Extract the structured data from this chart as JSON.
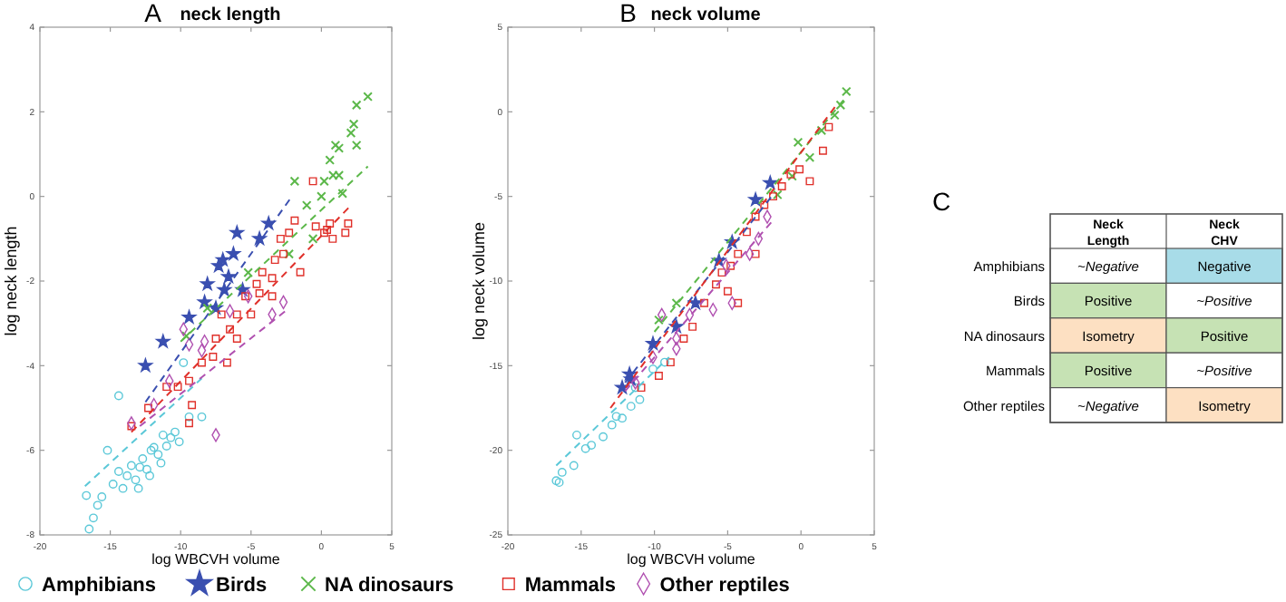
{
  "chart_data": [
    {
      "type": "scatter",
      "title": "neck length",
      "annotations": [
        "A"
      ],
      "xlabel": "log WBCVH volume",
      "ylabel": "log neck length",
      "xlim": [
        -20,
        5
      ],
      "ylim": [
        -8,
        4
      ],
      "xticks": [
        -20,
        -15,
        -10,
        -5,
        0,
        5
      ],
      "yticks": [
        -8,
        -6,
        -4,
        -2,
        0,
        2,
        4
      ],
      "grid": false,
      "legend": "bottom",
      "series": [
        {
          "name": "Amphibians",
          "color": "#5bc8d8",
          "marker": "circle",
          "x": [
            -16.7,
            -16.5,
            -16.2,
            -15.9,
            -15.2,
            -14.8,
            -14.4,
            -14.1,
            -13.8,
            -13.5,
            -13.2,
            -12.9,
            -12.7,
            -12.4,
            -12.1,
            -11.9,
            -11.6,
            -11.25,
            -11.0,
            -10.7,
            -10.4,
            -10.1,
            -9.4,
            -8.5,
            -14.4,
            -9.8,
            -15.6,
            -13.0,
            -12.2,
            -11.4
          ],
          "values": [
            -7.07,
            -7.86,
            -7.6,
            -7.3,
            -6.0,
            -6.8,
            -6.5,
            -6.9,
            -6.6,
            -6.36,
            -6.7,
            -6.4,
            -6.2,
            -6.45,
            -6.0,
            -5.93,
            -6.1,
            -5.64,
            -5.9,
            -5.7,
            -5.57,
            -5.8,
            -5.21,
            -5.21,
            -4.71,
            -3.93,
            -7.1,
            -6.9,
            -6.6,
            -6.3
          ]
        },
        {
          "name": "Birds",
          "color": "#3a4fb0",
          "marker": "star",
          "x": [
            -12.5,
            -11.25,
            -9.4,
            -8.1,
            -7.3,
            -6.25,
            -6.0,
            -4.4,
            -3.75,
            -6.9,
            -5.6,
            -8.3,
            -7.5,
            -6.6,
            -7.0
          ],
          "values": [
            -4.0,
            -3.43,
            -2.86,
            -2.07,
            -1.64,
            -1.36,
            -0.86,
            -1.0,
            -0.64,
            -2.21,
            -2.21,
            -2.5,
            -2.64,
            -1.9,
            -1.5
          ]
        },
        {
          "name": "NA dinosaurs",
          "color": "#5cb84a",
          "marker": "cross",
          "x": [
            2.5,
            3.3,
            2.3,
            2.1,
            1.0,
            2.5,
            0.6,
            1.25,
            0.2,
            1.5,
            1.25,
            0.83,
            -1.04,
            -1.9,
            0.0,
            -2.3,
            -5.2,
            -8.1,
            -9.6,
            -0.6
          ],
          "values": [
            2.16,
            2.36,
            1.71,
            1.5,
            1.21,
            1.21,
            0.86,
            0.5,
            0.36,
            0.07,
            1.14,
            0.5,
            -0.21,
            0.36,
            0.0,
            -1.36,
            -1.8,
            -2.64,
            -3.3,
            -1.0
          ]
        },
        {
          "name": "Mammals",
          "color": "#e0302a",
          "marker": "square",
          "x": [
            -13.5,
            -12.3,
            -11.0,
            -10.2,
            -9.4,
            -8.5,
            -7.7,
            -7.5,
            -6.7,
            -6.5,
            -7.1,
            -6.0,
            -5.4,
            -5.0,
            -4.6,
            -4.2,
            -3.5,
            -3.3,
            -2.7,
            -2.9,
            -2.3,
            -1.9,
            -1.5,
            -0.6,
            -0.4,
            0.2,
            0.6,
            -9.4,
            -9.2,
            -4.4,
            -3.5,
            -6.0,
            0.4,
            1.7,
            1.9,
            0.8
          ],
          "values": [
            -5.43,
            -5.0,
            -4.5,
            -4.5,
            -4.36,
            -3.93,
            -3.79,
            -3.36,
            -3.93,
            -3.14,
            -2.79,
            -2.79,
            -2.36,
            -2.79,
            -2.07,
            -1.79,
            -1.93,
            -1.5,
            -1.36,
            -1.0,
            -0.86,
            -0.57,
            -1.79,
            0.36,
            -0.71,
            -0.86,
            -0.64,
            -5.36,
            -4.93,
            -2.29,
            -2.36,
            -3.36,
            -0.79,
            -0.86,
            -0.64,
            -1.0
          ]
        },
        {
          "name": "Other reptiles",
          "color": "#b050b0",
          "marker": "diamond",
          "x": [
            -13.5,
            -11.9,
            -10.8,
            -9.4,
            -8.5,
            -7.5,
            -6.5,
            -5.2,
            -3.5,
            -2.7,
            -9.8,
            -8.3
          ],
          "values": [
            -5.36,
            -4.93,
            -4.36,
            -3.5,
            -3.64,
            -5.64,
            -2.71,
            -2.36,
            -2.79,
            -2.5,
            -3.14,
            -3.43
          ]
        },
        {
          "type": "line",
          "color": "#5bc8d8",
          "line_style": "dashed",
          "x": [
            -16.8,
            -8.5
          ],
          "values": [
            -6.85,
            -4.3
          ]
        },
        {
          "type": "line",
          "color": "#3a4fb0",
          "line_style": "dashed",
          "x": [
            -12.5,
            -2.1
          ],
          "values": [
            -4.86,
            0.0
          ]
        },
        {
          "type": "line",
          "color": "#5cb84a",
          "line_style": "dashed",
          "x": [
            -10.0,
            3.3
          ],
          "values": [
            -3.43,
            0.71
          ]
        },
        {
          "type": "line",
          "color": "#e0302a",
          "line_style": "dashed",
          "x": [
            -13.5,
            2.1
          ],
          "values": [
            -5.57,
            -0.21
          ]
        },
        {
          "type": "line",
          "color": "#b050b0",
          "line_style": "dashed",
          "x": [
            -12.9,
            -2.3
          ],
          "values": [
            -5.43,
            -2.64
          ]
        }
      ]
    },
    {
      "type": "scatter",
      "title": "neck volume",
      "annotations": [
        "B"
      ],
      "xlabel": "log WBCVH volume",
      "ylabel": "log neck volume",
      "xlim": [
        -20,
        5
      ],
      "ylim": [
        -25,
        5
      ],
      "xticks": [
        -20,
        -15,
        -10,
        -5,
        0,
        5
      ],
      "yticks": [
        -25,
        -20,
        -15,
        -10,
        -5,
        0,
        5
      ],
      "grid": false,
      "series": [
        {
          "color": "#5bc8d8",
          "marker": "circle",
          "x": [
            -16.7,
            -16.3,
            -15.5,
            -14.7,
            -14.3,
            -13.5,
            -12.9,
            -12.2,
            -11.6,
            -12.6,
            -11.3,
            -10.1,
            -9.3,
            -11.0,
            -15.3,
            -16.5
          ],
          "values": [
            -21.8,
            -21.3,
            -20.9,
            -19.9,
            -19.7,
            -19.2,
            -18.5,
            -18.1,
            -17.4,
            -18.0,
            -16.3,
            -15.2,
            -14.8,
            -17.0,
            -19.1,
            -21.9
          ]
        },
        {
          "color": "#3a4fb0",
          "marker": "star",
          "x": [
            -11.7,
            -10.1,
            -8.5,
            -7.2,
            -5.6,
            -4.7,
            -3.1,
            -2.1,
            -12.2,
            -11.6
          ],
          "values": [
            -15.5,
            -13.7,
            -12.7,
            -11.3,
            -8.8,
            -7.7,
            -5.2,
            -4.2,
            -16.3,
            -15.8
          ]
        },
        {
          "color": "#5cb84a",
          "marker": "cross",
          "x": [
            3.1,
            2.7,
            2.3,
            1.4,
            -0.2,
            0.6,
            -0.6,
            -1.6,
            -9.7,
            -8.5
          ],
          "values": [
            1.2,
            0.4,
            -0.2,
            -1.1,
            -1.8,
            -2.7,
            -3.8,
            -4.9,
            -12.3,
            -11.3
          ]
        },
        {
          "color": "#e0302a",
          "marker": "square",
          "x": [
            -10.9,
            -9.7,
            -8.9,
            -8.0,
            -7.4,
            -6.6,
            -5.8,
            -5.4,
            -4.8,
            -4.3,
            -3.7,
            -3.1,
            -2.5,
            -1.9,
            -1.3,
            -0.7,
            -0.1,
            0.6,
            1.5,
            1.9,
            -5.0,
            -3.1,
            -4.3
          ],
          "values": [
            -16.3,
            -15.6,
            -14.8,
            -13.4,
            -12.7,
            -11.3,
            -10.2,
            -9.5,
            -9.1,
            -8.4,
            -7.1,
            -6.2,
            -5.5,
            -5.0,
            -4.4,
            -3.7,
            -3.4,
            -4.1,
            -2.3,
            -0.9,
            -10.6,
            -8.4,
            -11.3
          ]
        },
        {
          "color": "#b050b0",
          "marker": "diamond",
          "x": [
            -11.3,
            -10.1,
            -8.5,
            -8.5,
            -7.6,
            -4.7,
            -6.0,
            -3.5,
            -2.9,
            -2.3,
            -5.1,
            -9.5
          ],
          "values": [
            -16.0,
            -14.5,
            -13.4,
            -14.0,
            -12.0,
            -11.3,
            -11.7,
            -8.4,
            -7.5,
            -6.2,
            -9.1,
            -12.0
          ]
        },
        {
          "type": "line",
          "color": "#5bc8d8",
          "line_style": "dashed",
          "x": [
            -16.7,
            -9.0
          ],
          "values": [
            -20.9,
            -14.5
          ]
        },
        {
          "type": "line",
          "color": "#3a4fb0",
          "line_style": "dashed",
          "x": [
            -12.0,
            -2.0
          ],
          "values": [
            -16.0,
            -5.0
          ]
        },
        {
          "type": "line",
          "color": "#5cb84a",
          "line_style": "dashed",
          "x": [
            -10.0,
            3.0
          ],
          "values": [
            -13.0,
            0.8
          ]
        },
        {
          "type": "line",
          "color": "#e0302a",
          "line_style": "dashed",
          "x": [
            -13.0,
            2.5
          ],
          "values": [
            -17.5,
            0.5
          ]
        },
        {
          "type": "line",
          "color": "#b050b0",
          "line_style": "dashed",
          "x": [
            -12.0,
            -2.0
          ],
          "values": [
            -16.5,
            -6.5
          ]
        }
      ]
    },
    {
      "type": "other",
      "title": "C",
      "categories": [
        "Neck Length",
        "Neck CHV"
      ],
      "y_categories": [
        "Amphibians",
        "Birds",
        "NA dinosaurs",
        "Mammals",
        "Other reptiles"
      ],
      "cell_labels": [
        [
          "~Negative",
          "Negative"
        ],
        [
          "Positive",
          "~Positive"
        ],
        [
          "Isometry",
          "Positive"
        ],
        [
          "Positive",
          "~Positive"
        ],
        [
          "~Negative",
          "Isometry"
        ]
      ],
      "colors": [
        null,
        "#a8dce8",
        "#c6e2b4",
        null,
        "#fde0c2",
        "#c6e2b4",
        "#c6e2b4",
        null,
        null,
        "#fde0c2"
      ]
    }
  ]
}
